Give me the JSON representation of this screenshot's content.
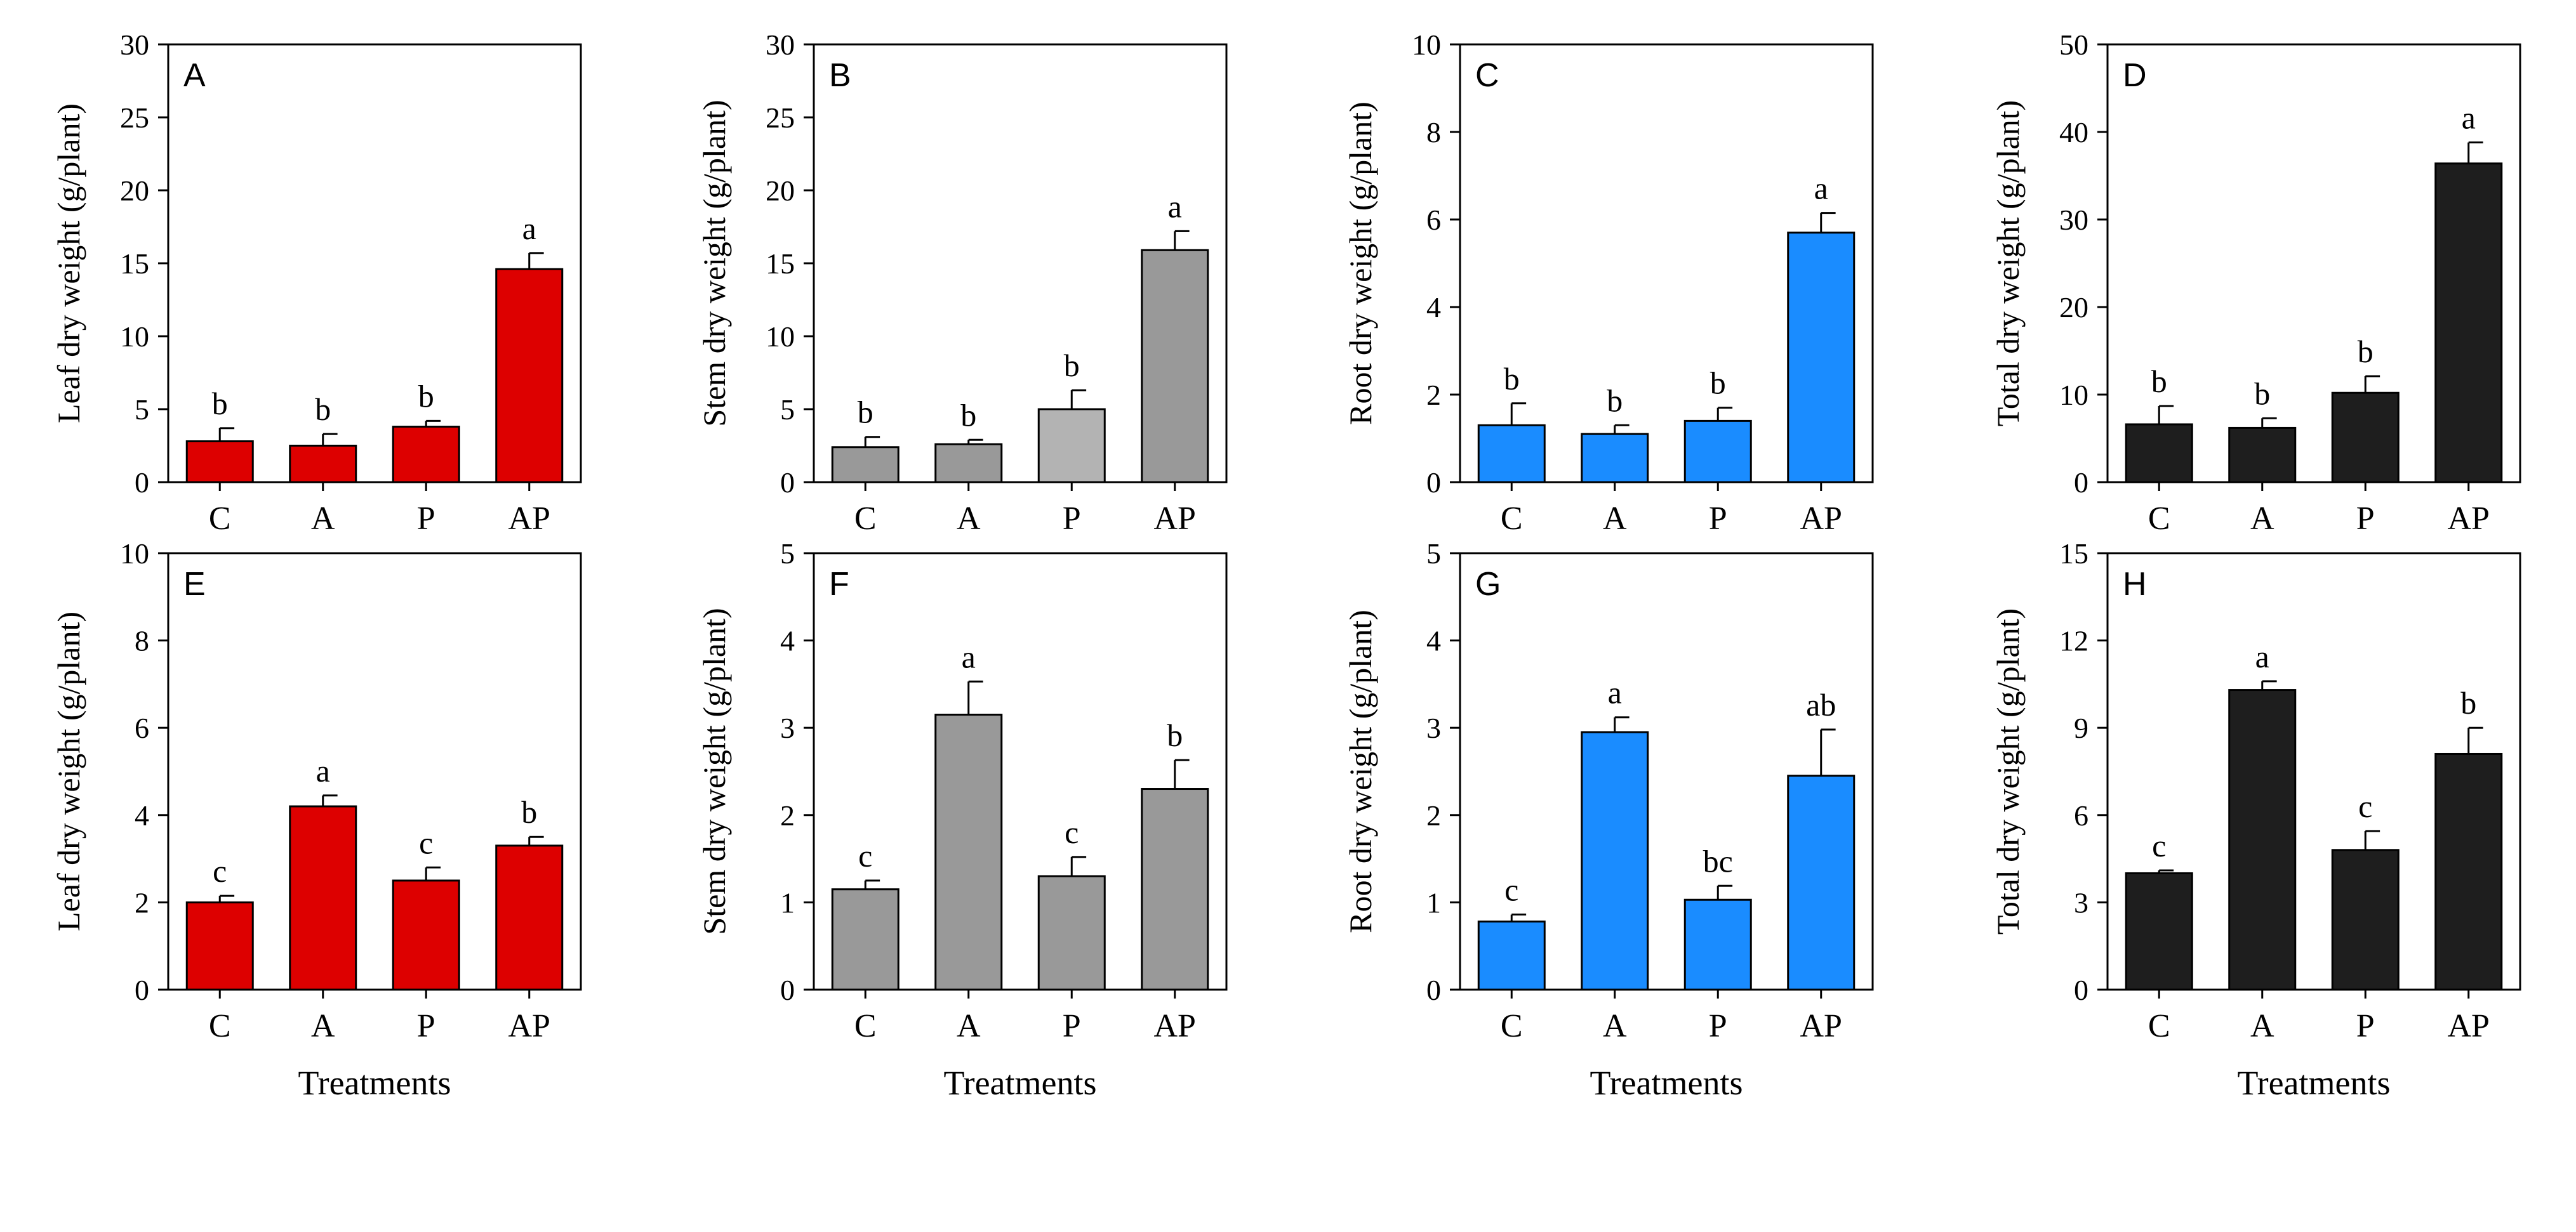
{
  "figure": {
    "categories": [
      "C",
      "A",
      "P",
      "AP"
    ],
    "xlabel": "Treatments"
  },
  "chart_data": [
    {
      "type": "bar",
      "panel": "A",
      "ylabel": "Leaf dry weight (g/plant)",
      "ylim": [
        0,
        30
      ],
      "yticks": [
        0,
        5,
        10,
        15,
        20,
        25,
        30
      ],
      "color": "#dd0000",
      "categories": [
        "C",
        "A",
        "P",
        "AP"
      ],
      "values": [
        2.8,
        2.5,
        3.8,
        14.6
      ],
      "errors": [
        0.9,
        0.8,
        0.4,
        1.1
      ],
      "labels": [
        "b",
        "b",
        "b",
        "a"
      ],
      "xlabel": ""
    },
    {
      "type": "bar",
      "panel": "B",
      "ylabel": "Stem dry weight (g/plant)",
      "ylim": [
        0,
        30
      ],
      "yticks": [
        0,
        5,
        10,
        15,
        20,
        25,
        30
      ],
      "color": "#999999",
      "categories": [
        "C",
        "A",
        "P",
        "AP"
      ],
      "values": [
        2.4,
        2.6,
        5.0,
        15.9
      ],
      "errors": [
        0.7,
        0.3,
        1.3,
        1.3
      ],
      "labels": [
        "b",
        "b",
        "b",
        "a"
      ],
      "xlabel": "",
      "colors": [
        "#999999",
        "#999999",
        "#b3b3b3",
        "#999999"
      ]
    },
    {
      "type": "bar",
      "panel": "C",
      "ylabel": "Root dry weight (g/plant)",
      "ylim": [
        0,
        10
      ],
      "yticks": [
        0,
        2,
        4,
        6,
        8,
        10
      ],
      "color": "#1a8cff",
      "categories": [
        "C",
        "A",
        "P",
        "AP"
      ],
      "values": [
        1.3,
        1.1,
        1.4,
        5.7
      ],
      "errors": [
        0.5,
        0.2,
        0.3,
        0.45
      ],
      "labels": [
        "b",
        "b",
        "b",
        "a"
      ],
      "xlabel": ""
    },
    {
      "type": "bar",
      "panel": "D",
      "ylabel": "Total dry weight (g/plant)",
      "ylim": [
        0,
        50
      ],
      "yticks": [
        0,
        10,
        20,
        30,
        40,
        50
      ],
      "color": "#1e1e1e",
      "categories": [
        "C",
        "A",
        "P",
        "AP"
      ],
      "values": [
        6.6,
        6.2,
        10.2,
        36.4
      ],
      "errors": [
        2.1,
        1.1,
        1.9,
        2.4
      ],
      "labels": [
        "b",
        "b",
        "b",
        "a"
      ],
      "xlabel": ""
    },
    {
      "type": "bar",
      "panel": "E",
      "ylabel": "Leaf dry weight (g/plant)",
      "ylim": [
        0,
        10
      ],
      "yticks": [
        0,
        2,
        4,
        6,
        8,
        10
      ],
      "color": "#dd0000",
      "categories": [
        "C",
        "A",
        "P",
        "AP"
      ],
      "values": [
        2.0,
        4.2,
        2.5,
        3.3
      ],
      "errors": [
        0.15,
        0.25,
        0.3,
        0.2
      ],
      "labels": [
        "c",
        "a",
        "c",
        "b"
      ],
      "xlabel": "Treatments"
    },
    {
      "type": "bar",
      "panel": "F",
      "ylabel": "Stem dry weight (g/plant)",
      "ylim": [
        0,
        5
      ],
      "yticks": [
        0,
        1,
        2,
        3,
        4,
        5
      ],
      "color": "#999999",
      "categories": [
        "C",
        "A",
        "P",
        "AP"
      ],
      "values": [
        1.15,
        3.15,
        1.3,
        2.3
      ],
      "errors": [
        0.1,
        0.38,
        0.22,
        0.33
      ],
      "labels": [
        "c",
        "a",
        "c",
        "b"
      ],
      "xlabel": "Treatments"
    },
    {
      "type": "bar",
      "panel": "G",
      "ylabel": "Root dry weight (g/plant)",
      "ylim": [
        0,
        5
      ],
      "yticks": [
        0,
        1,
        2,
        3,
        4,
        5
      ],
      "color": "#1a8cff",
      "categories": [
        "C",
        "A",
        "P",
        "AP"
      ],
      "values": [
        0.78,
        2.95,
        1.03,
        2.45
      ],
      "errors": [
        0.08,
        0.17,
        0.16,
        0.53
      ],
      "labels": [
        "c",
        "a",
        "bc",
        "ab"
      ],
      "xlabel": "Treatments"
    },
    {
      "type": "bar",
      "panel": "H",
      "ylabel": "Total dry weight (g/plant)",
      "ylim": [
        0,
        15
      ],
      "yticks": [
        0,
        3,
        6,
        9,
        12,
        15
      ],
      "color": "#1e1e1e",
      "categories": [
        "C",
        "A",
        "P",
        "AP"
      ],
      "values": [
        4.0,
        10.3,
        4.8,
        8.1
      ],
      "errors": [
        0.1,
        0.3,
        0.65,
        0.9
      ],
      "labels": [
        "c",
        "a",
        "c",
        "b"
      ],
      "xlabel": "Treatments"
    }
  ]
}
